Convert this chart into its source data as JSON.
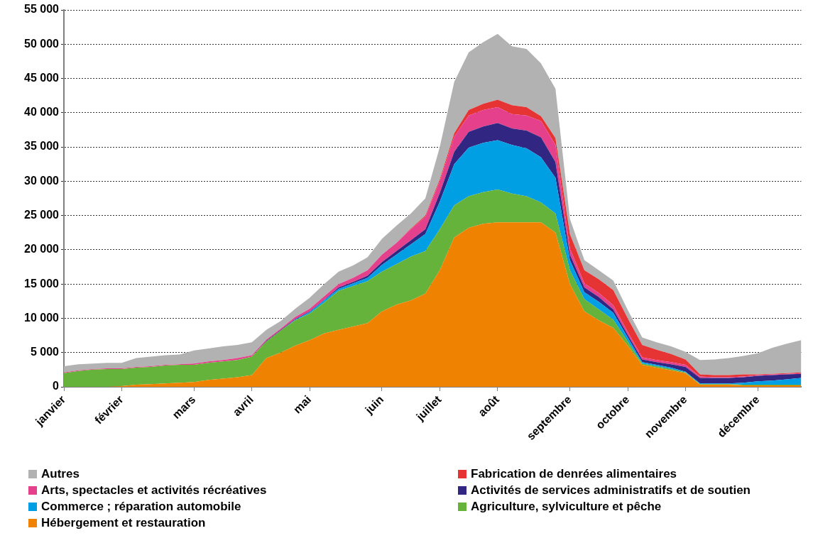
{
  "chart_data": {
    "type": "area",
    "stacked": true,
    "grid": "y",
    "legend": "bottom",
    "categories": [
      "janvier",
      null,
      null,
      null,
      "février",
      null,
      null,
      null,
      null,
      "mars",
      null,
      null,
      null,
      "avril",
      null,
      null,
      null,
      "mai",
      null,
      null,
      null,
      null,
      "juin",
      null,
      null,
      null,
      "juillet",
      null,
      null,
      null,
      "août",
      null,
      null,
      null,
      null,
      "septembre",
      null,
      null,
      null,
      "octobre",
      null,
      null,
      null,
      "novembre",
      null,
      null,
      null,
      null,
      "décembre",
      null,
      null,
      null
    ],
    "ylim": [
      0,
      55000
    ],
    "yticks": [
      0,
      {
        "value": 5000,
        "label": "5 000"
      },
      {
        "value": 10000,
        "label": "10 000"
      },
      {
        "value": 15000,
        "label": "15 000"
      },
      {
        "value": 20000,
        "label": "20 000"
      },
      {
        "value": 25000,
        "label": "25 000"
      },
      {
        "value": 30000,
        "label": "30 000"
      },
      {
        "value": 35000,
        "label": "35 000"
      },
      {
        "value": 40000,
        "label": "40 000"
      },
      {
        "value": 45000,
        "label": "45 000"
      },
      {
        "value": 50000,
        "label": "50 000"
      },
      {
        "value": 55000,
        "label": "55 000"
      }
    ],
    "series": [
      {
        "name": "Hébergement et restauration",
        "color": "#ef8200",
        "values": [
          0,
          0,
          0,
          0,
          100,
          300,
          400,
          500,
          600,
          700,
          1000,
          1200,
          1400,
          1700,
          4200,
          5000,
          6000,
          6800,
          7800,
          8300,
          8800,
          9300,
          11000,
          12000,
          12600,
          13600,
          17000,
          21800,
          23200,
          23800,
          24000,
          24000,
          24000,
          24000,
          22500,
          15000,
          11000,
          9700,
          8600,
          6000,
          3200,
          2800,
          2400,
          2000,
          300,
          300,
          300,
          200,
          200,
          200,
          200,
          200
        ]
      },
      {
        "name": "Agriculture, sylviculture et pêche",
        "color": "#65b33a",
        "values": [
          2000,
          2300,
          2500,
          2600,
          2500,
          2500,
          2500,
          2600,
          2600,
          2500,
          2500,
          2500,
          2500,
          2700,
          2400,
          3200,
          3700,
          3900,
          4500,
          5700,
          5900,
          6100,
          5800,
          5900,
          6400,
          6200,
          6000,
          4700,
          4600,
          4600,
          4800,
          4200,
          3800,
          2900,
          2800,
          2000,
          1800,
          1600,
          1200,
          600,
          200,
          200,
          200,
          100,
          100,
          100,
          100,
          100,
          100,
          100,
          100,
          100
        ]
      },
      {
        "name": "Commerce ; réparation automobile",
        "color": "#009fe3",
        "values": [
          0,
          0,
          0,
          0,
          0,
          0,
          0,
          0,
          0,
          0,
          0,
          0,
          0,
          0,
          0,
          0,
          100,
          200,
          300,
          300,
          400,
          500,
          1000,
          1400,
          1800,
          2500,
          4000,
          6000,
          7100,
          7200,
          7200,
          7100,
          7000,
          6600,
          5200,
          1500,
          1000,
          1100,
          1000,
          600,
          200,
          200,
          200,
          100,
          100,
          100,
          100,
          300,
          500,
          600,
          800,
          1000
        ]
      },
      {
        "name": "Activités de services administratifs et de soutien",
        "color": "#312783",
        "values": [
          0,
          0,
          0,
          0,
          0,
          0,
          0,
          0,
          0,
          0,
          0,
          0,
          0,
          0,
          100,
          100,
          100,
          100,
          100,
          200,
          200,
          300,
          400,
          500,
          600,
          700,
          1300,
          1800,
          2300,
          2400,
          2500,
          2400,
          2600,
          2900,
          2300,
          800,
          700,
          700,
          500,
          400,
          400,
          400,
          500,
          700,
          800,
          800,
          800,
          800,
          800,
          800,
          700,
          600
        ]
      },
      {
        "name": "Arts, spectacles et activités récréatives",
        "color": "#e5408c",
        "values": [
          100,
          100,
          100,
          100,
          100,
          100,
          100,
          100,
          100,
          200,
          200,
          200,
          300,
          200,
          200,
          200,
          300,
          400,
          500,
          500,
          600,
          800,
          1100,
          1200,
          1600,
          1800,
          1700,
          2200,
          2400,
          2400,
          2300,
          2100,
          2200,
          2400,
          2500,
          900,
          600,
          600,
          600,
          400,
          300,
          300,
          300,
          300,
          200,
          100,
          100,
          100,
          100,
          100,
          100,
          100
        ]
      },
      {
        "name": "Fabrication de denrées alimentaires",
        "color": "#e63333",
        "values": [
          0,
          0,
          0,
          0,
          0,
          0,
          0,
          0,
          0,
          0,
          0,
          0,
          0,
          0,
          0,
          0,
          0,
          0,
          0,
          0,
          0,
          0,
          0,
          0,
          100,
          200,
          300,
          500,
          800,
          900,
          1100,
          1300,
          1200,
          700,
          1000,
          2100,
          1900,
          2000,
          2200,
          2000,
          1800,
          1500,
          1200,
          800,
          300,
          300,
          300,
          300,
          100,
          100,
          100,
          100
        ]
      },
      {
        "name": "Autres",
        "color": "#b2b2b2",
        "values": [
          900,
          900,
          800,
          800,
          800,
          1300,
          1400,
          1400,
          1400,
          1900,
          1900,
          2000,
          1900,
          1900,
          1400,
          1100,
          1200,
          1600,
          1800,
          1800,
          1800,
          1900,
          2300,
          2500,
          2200,
          2500,
          4700,
          7500,
          8400,
          9000,
          9600,
          8600,
          8500,
          7700,
          7200,
          2200,
          1500,
          1300,
          1400,
          1200,
          1100,
          1100,
          1100,
          1100,
          2100,
          2300,
          2500,
          2700,
          3100,
          3800,
          4300,
          4700
        ]
      }
    ]
  }
}
